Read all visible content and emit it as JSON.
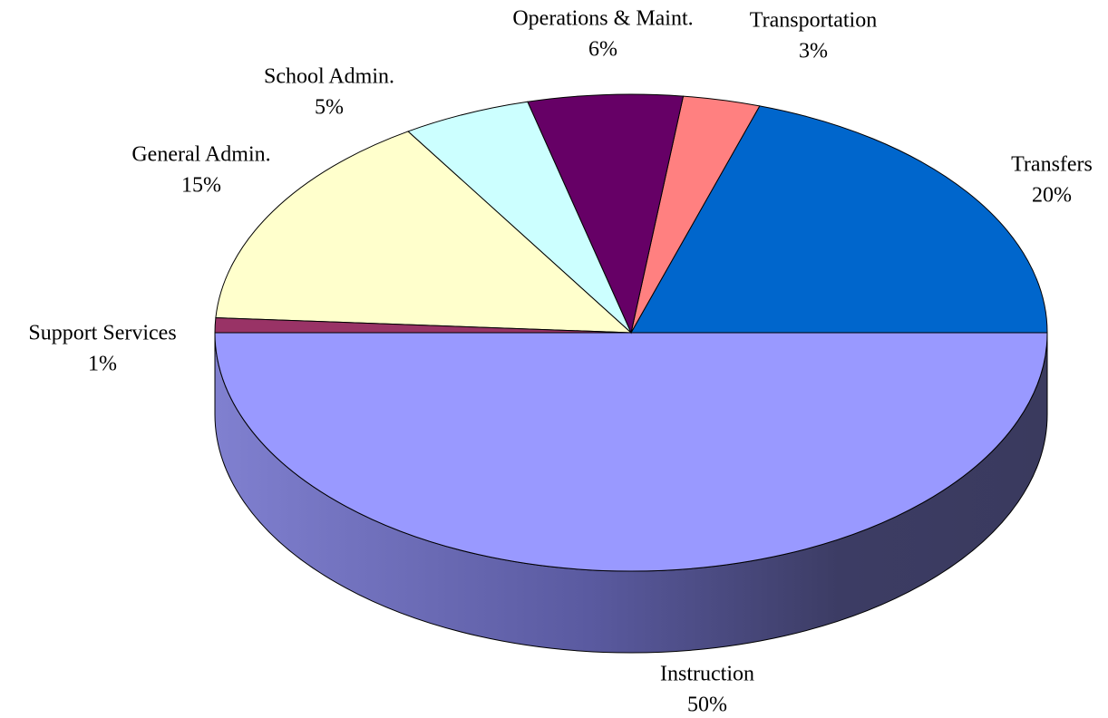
{
  "chart_data": {
    "type": "pie",
    "categories": [
      "Instruction",
      "Transfers",
      "Transportation",
      "Operations & Maint.",
      "School Admin.",
      "General Admin.",
      "Support Services"
    ],
    "values": [
      50,
      20,
      3,
      6,
      5,
      15,
      1
    ],
    "value_labels": [
      "50%",
      "20%",
      "3%",
      "6%",
      "5%",
      "15%",
      "1%"
    ],
    "colors": [
      "#9999FF",
      "#0066CC",
      "#FF8080",
      "#660066",
      "#CCFFFF",
      "#FFFFCC",
      "#993366"
    ]
  }
}
